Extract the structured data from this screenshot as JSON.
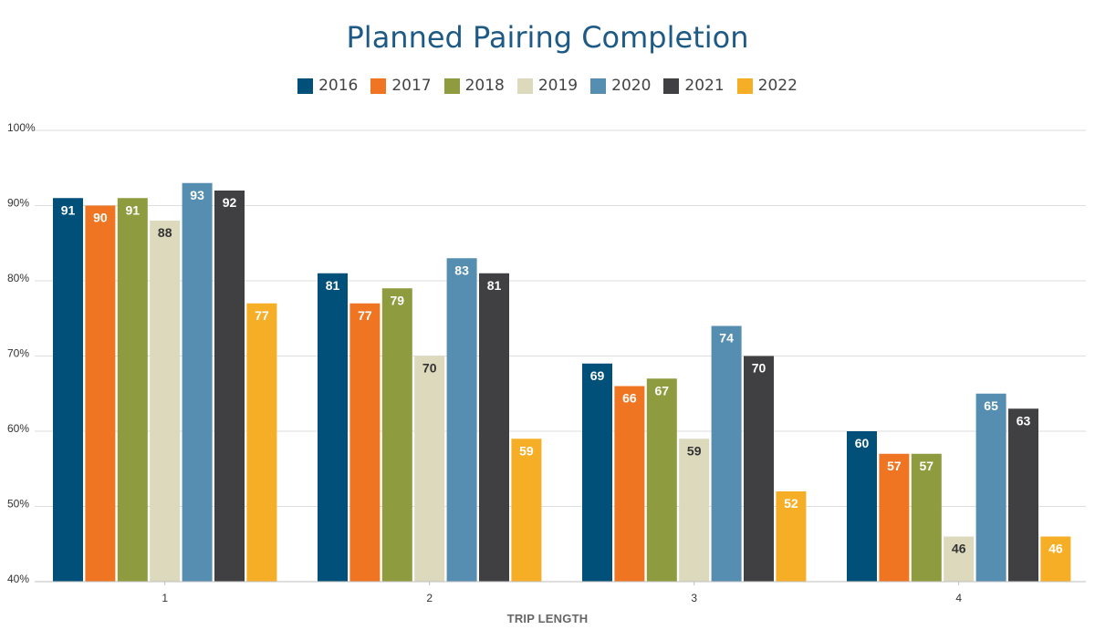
{
  "chart_data": {
    "type": "bar",
    "title": "Planned Pairing Completion",
    "xlabel": "TRIP LENGTH",
    "ylabel": "",
    "categories": [
      "1",
      "2",
      "3",
      "4"
    ],
    "ylim": [
      40,
      100
    ],
    "yticks": [
      40,
      50,
      60,
      70,
      80,
      90,
      100
    ],
    "ytick_labels": [
      "40%",
      "50%",
      "60%",
      "70%",
      "80%",
      "90%",
      "100%"
    ],
    "grid": true,
    "legend_position": "top",
    "series": [
      {
        "name": "2016",
        "color": "#00507a",
        "label_color": "#ffffff",
        "values": [
          91,
          81,
          69,
          60
        ]
      },
      {
        "name": "2017",
        "color": "#f07523",
        "label_color": "#ffffff",
        "values": [
          90,
          77,
          66,
          57
        ]
      },
      {
        "name": "2018",
        "color": "#8f9b3f",
        "label_color": "#ffffff",
        "values": [
          91,
          79,
          67,
          57
        ]
      },
      {
        "name": "2019",
        "color": "#dcd9bd",
        "label_color": "#333333",
        "values": [
          88,
          70,
          59,
          46
        ]
      },
      {
        "name": "2020",
        "color": "#558eb0",
        "label_color": "#ffffff",
        "values": [
          93,
          83,
          74,
          65
        ]
      },
      {
        "name": "2021",
        "color": "#404042",
        "label_color": "#ffffff",
        "values": [
          92,
          81,
          70,
          63
        ]
      },
      {
        "name": "2022",
        "color": "#f6ae26",
        "label_color": "#ffffff",
        "values": [
          77,
          59,
          52,
          46
        ]
      }
    ]
  }
}
